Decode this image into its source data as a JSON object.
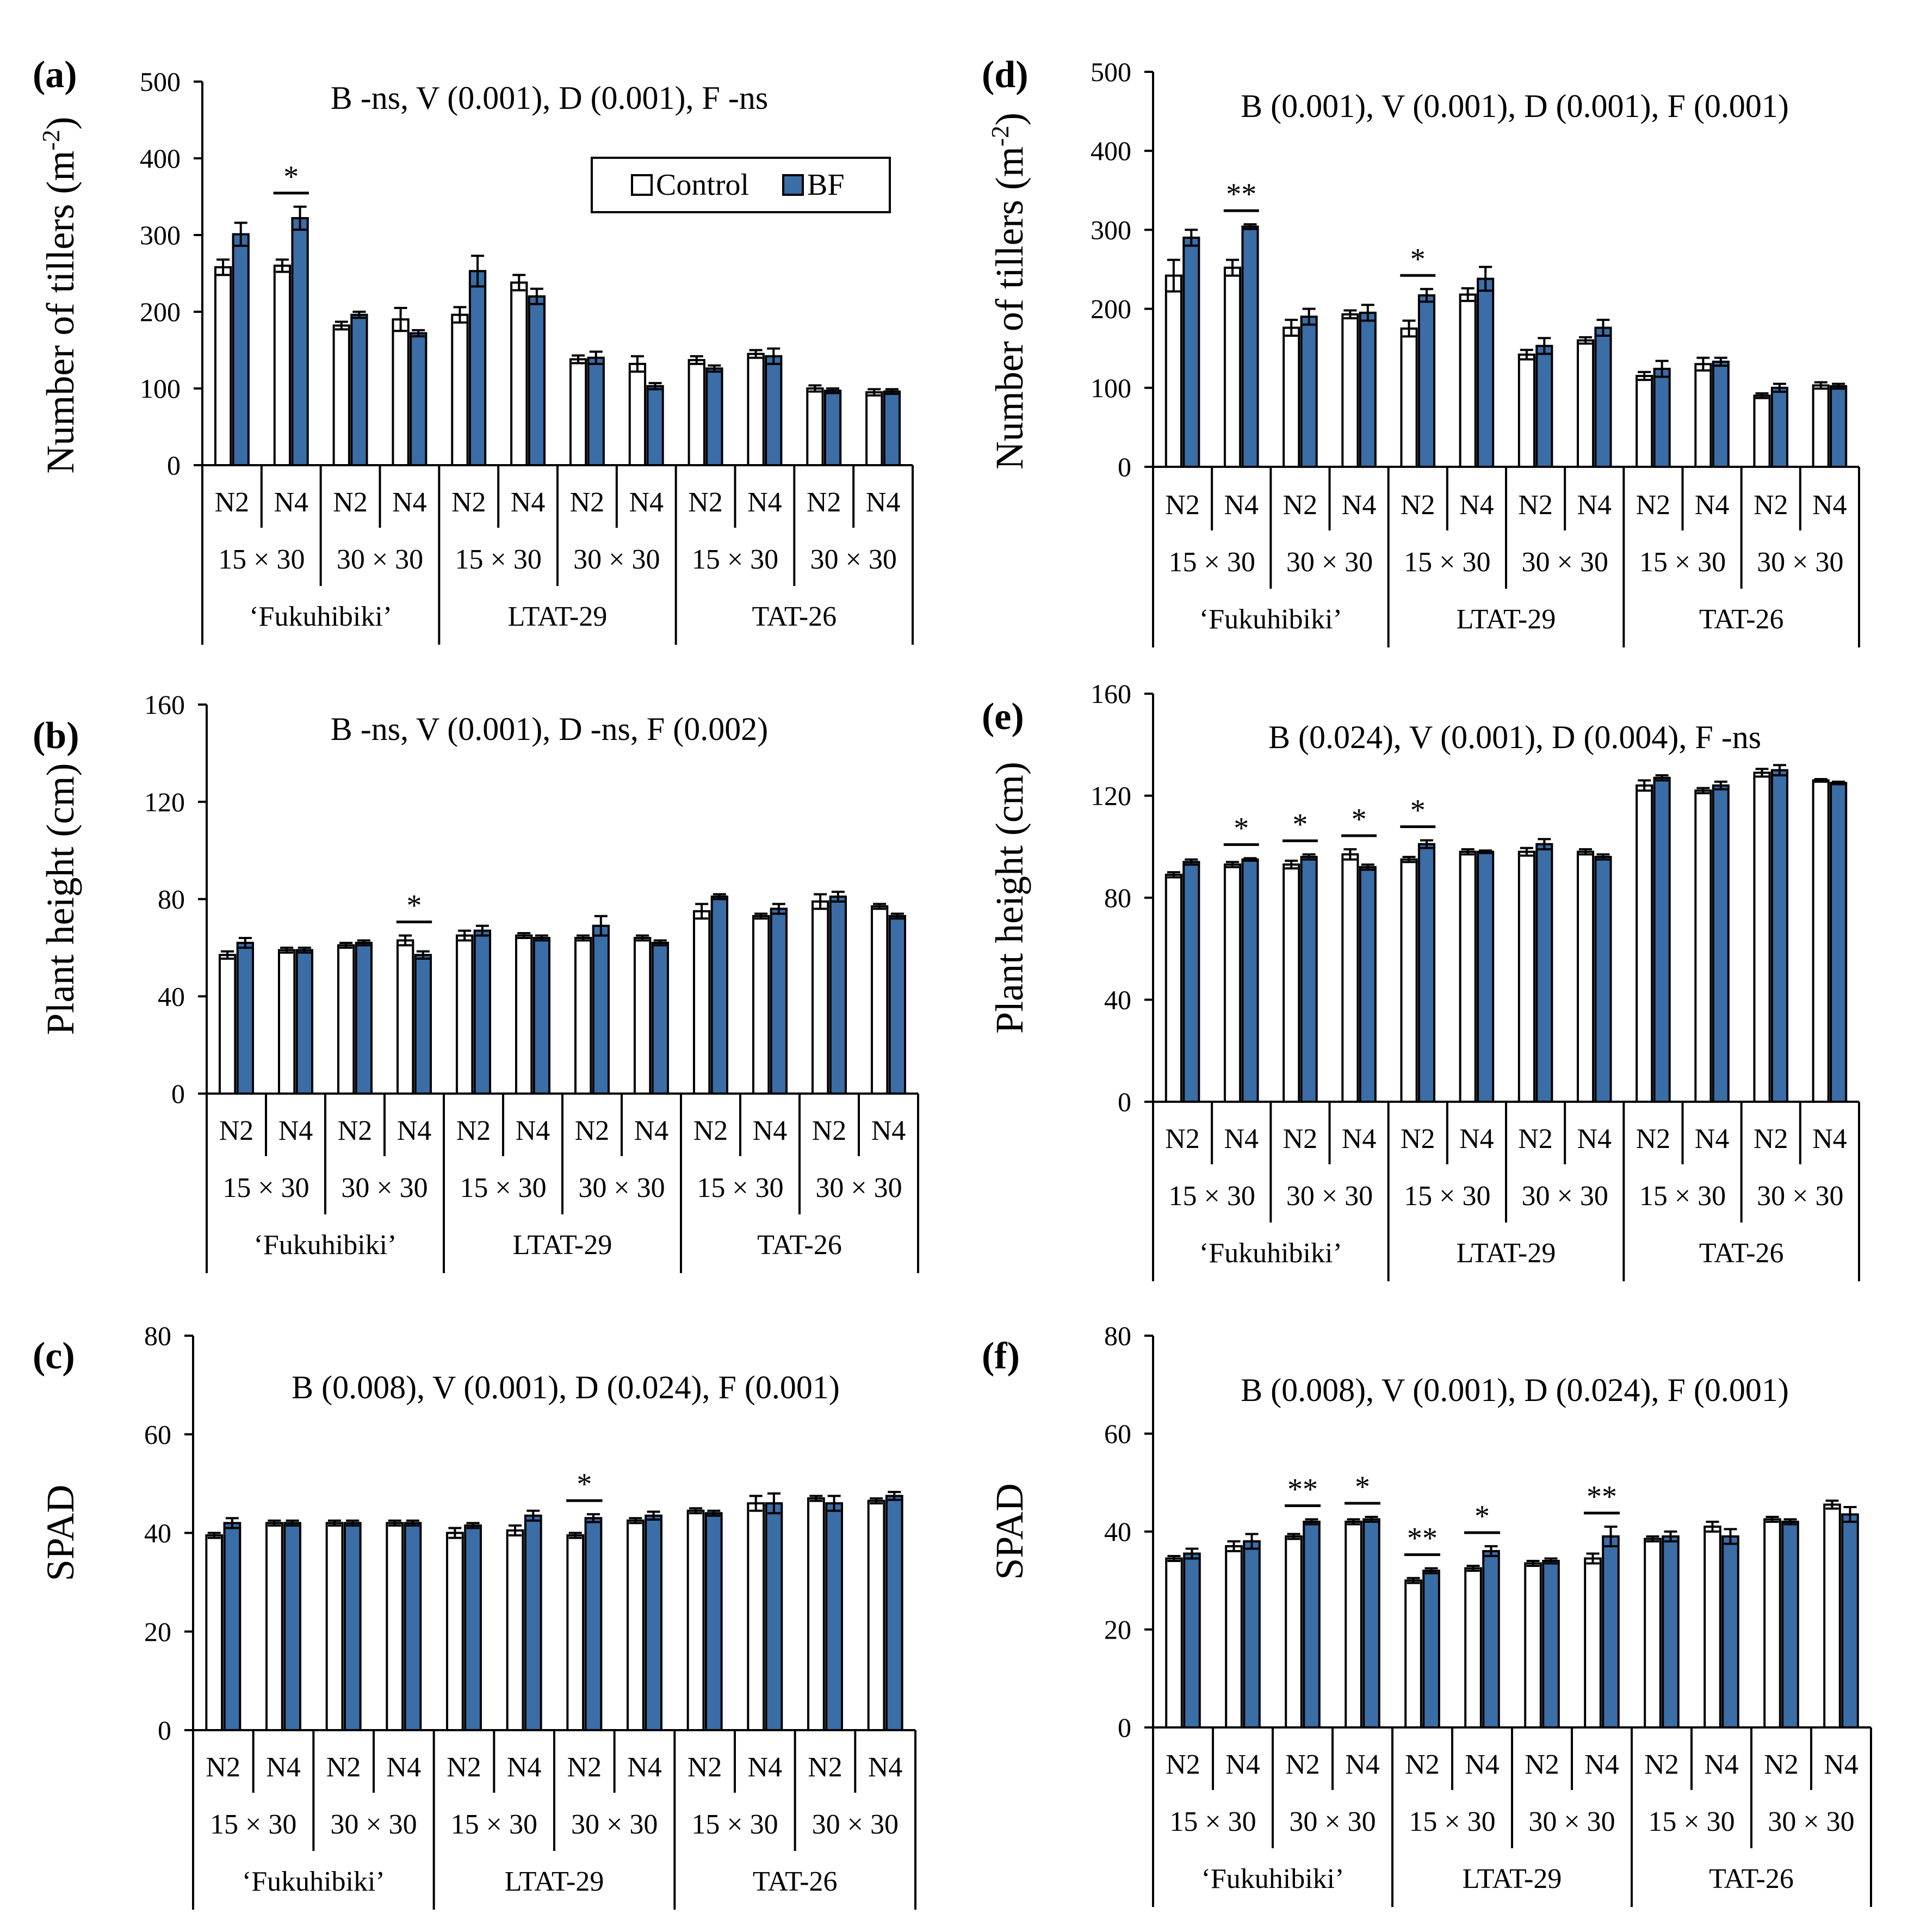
{
  "colors": {
    "control": "#ffffff",
    "bf": "#3b6da6",
    "stroke": "#000000"
  },
  "legend": {
    "control": "Control",
    "bf": "BF"
  },
  "categories": {
    "n_levels": [
      "N2",
      "N4",
      "N2",
      "N4",
      "N2",
      "N4",
      "N2",
      "N4",
      "N2",
      "N4",
      "N2",
      "N4"
    ],
    "spacing": [
      "15 × 30",
      "30 × 30",
      "15 × 30",
      "30 × 30",
      "15 × 30",
      "30 × 30"
    ],
    "varieties": [
      "‘Fukuhibiki’",
      "LTAT-29",
      "TAT-26"
    ]
  },
  "chart_data": [
    {
      "panel": "(a)",
      "type": "bar",
      "title": "B -ns, V (0.001), D (0.001), F -ns",
      "ylabel": "Number of tillers (m-2)",
      "ylabel_main": "Number of tillers (m",
      "ylabel_sup": "-2",
      "ylabel_end": ")",
      "ylim": [
        0,
        500
      ],
      "yticks": [
        "0",
        "100",
        "200",
        "300",
        "400",
        "500"
      ],
      "legend": true,
      "series": [
        {
          "name": "Control",
          "values": [
            258,
            260,
            182,
            190,
            196,
            238,
            138,
            132,
            137,
            145,
            100,
            95
          ],
          "errors": [
            10,
            8,
            5,
            15,
            10,
            10,
            5,
            10,
            5,
            5,
            4,
            4
          ]
        },
        {
          "name": "BF",
          "values": [
            301,
            322,
            196,
            172,
            253,
            220,
            140,
            103,
            126,
            142,
            97,
            96
          ],
          "errors": [
            15,
            15,
            4,
            4,
            20,
            10,
            8,
            4,
            4,
            10,
            3,
            3
          ]
        }
      ],
      "significance": [
        {
          "group": 1,
          "label": "*"
        }
      ]
    },
    {
      "panel": "(b)",
      "type": "bar",
      "title": "B -ns, V (0.001), D -ns, F (0.002)",
      "ylabel": "Plant height (cm)",
      "ylim": [
        0,
        160
      ],
      "yticks": [
        "0",
        "40",
        "80",
        "120",
        "160"
      ],
      "legend": false,
      "series": [
        {
          "name": "Control",
          "values": [
            57,
            59,
            61,
            63,
            65,
            65,
            64,
            64,
            75,
            73,
            79,
            77
          ],
          "errors": [
            1.5,
            1,
            1,
            2,
            2,
            1,
            1,
            1,
            3,
            1,
            3,
            1
          ]
        },
        {
          "name": "BF",
          "values": [
            62,
            59,
            62,
            57,
            67,
            64,
            69,
            62,
            81,
            76,
            81,
            73
          ],
          "errors": [
            2,
            1,
            1,
            1.5,
            2,
            1,
            4,
            1,
            1,
            2,
            2,
            1
          ]
        }
      ],
      "significance": [
        {
          "group": 3,
          "label": "*"
        }
      ]
    },
    {
      "panel": "(c)",
      "type": "bar",
      "title": "B (0.008), V (0.001), D (0.024), F (0.001)",
      "ylabel": "SPAD",
      "ylim": [
        0,
        80
      ],
      "yticks": [
        "0",
        "20",
        "40",
        "60",
        "80"
      ],
      "legend": false,
      "series": [
        {
          "name": "Control",
          "values": [
            39.5,
            42,
            42,
            42,
            40,
            40.5,
            39.5,
            42.5,
            44.5,
            46,
            47,
            46.5
          ],
          "errors": [
            0.5,
            0.5,
            0.5,
            0.5,
            1,
            1,
            0.5,
            0.5,
            0.5,
            1.5,
            0.5,
            0.5
          ]
        },
        {
          "name": "BF",
          "values": [
            42,
            42,
            42,
            42,
            41.5,
            43.5,
            43,
            43.5,
            44,
            46,
            46,
            47.5
          ],
          "errors": [
            1,
            0.5,
            0.5,
            0.5,
            0.5,
            1,
            0.8,
            0.8,
            0.5,
            2,
            1.5,
            0.8
          ]
        }
      ],
      "significance": [
        {
          "group": 6,
          "label": "*"
        }
      ]
    },
    {
      "panel": "(d)",
      "type": "bar",
      "title": "B (0.001), V (0.001), D (0.001), F (0.001)",
      "ylabel": "Number of tillers (m-2)",
      "ylabel_main": "Number of tillers (m",
      "ylabel_sup": "-2",
      "ylabel_end": ")",
      "ylim": [
        0,
        500
      ],
      "yticks": [
        "0",
        "100",
        "200",
        "300",
        "400",
        "500"
      ],
      "legend": false,
      "series": [
        {
          "name": "Control",
          "values": [
            242,
            252,
            176,
            193,
            175,
            218,
            142,
            160,
            115,
            130,
            90,
            103
          ],
          "errors": [
            20,
            10,
            10,
            5,
            10,
            8,
            6,
            4,
            5,
            8,
            3,
            4
          ]
        },
        {
          "name": "BF",
          "values": [
            290,
            304,
            190,
            195,
            217,
            238,
            153,
            176,
            124,
            133,
            100,
            102
          ],
          "errors": [
            10,
            3,
            10,
            10,
            8,
            15,
            10,
            10,
            10,
            5,
            5,
            3
          ]
        }
      ],
      "significance": [
        {
          "group": 1,
          "label": "**"
        },
        {
          "group": 4,
          "label": "*"
        }
      ]
    },
    {
      "panel": "(e)",
      "type": "bar",
      "title": "B (0.024), V (0.001), D (0.004), F -ns",
      "ylabel": "Plant height (cm)",
      "ylim": [
        0,
        160
      ],
      "yticks": [
        "0",
        "40",
        "80",
        "120",
        "160"
      ],
      "legend": false,
      "series": [
        {
          "name": "Control",
          "values": [
            89,
            93,
            93,
            97,
            95,
            98,
            98,
            98,
            124,
            122,
            129,
            126
          ],
          "errors": [
            1,
            1,
            1.5,
            2,
            1,
            1,
            1.5,
            1,
            2,
            1,
            1.5,
            0.5
          ]
        },
        {
          "name": "BF",
          "values": [
            94,
            95,
            96,
            92,
            101,
            98,
            101,
            96,
            127,
            124,
            130,
            125
          ],
          "errors": [
            1,
            0.5,
            1,
            1,
            1.5,
            0.5,
            2,
            1,
            1,
            1.5,
            2,
            0.5
          ]
        }
      ],
      "significance": [
        {
          "group": 1,
          "label": "*"
        },
        {
          "group": 2,
          "label": "*"
        },
        {
          "group": 3,
          "label": "*"
        },
        {
          "group": 4,
          "label": "*"
        }
      ]
    },
    {
      "panel": "(f)",
      "type": "bar",
      "title": "B (0.008), V (0.001), D (0.024), F (0.001)",
      "ylabel": "SPAD",
      "ylim": [
        0,
        80
      ],
      "yticks": [
        "0",
        "20",
        "40",
        "60",
        "80"
      ],
      "legend": false,
      "series": [
        {
          "name": "Control",
          "values": [
            34.5,
            37,
            39,
            42,
            30,
            32.5,
            33.5,
            34.5,
            38.5,
            41,
            42.5,
            45.5
          ],
          "errors": [
            0.5,
            1,
            0.5,
            0.5,
            0.5,
            0.5,
            0.5,
            1,
            0.5,
            1,
            0.5,
            0.8
          ]
        },
        {
          "name": "BF",
          "values": [
            35.5,
            38,
            42,
            42.5,
            32,
            36,
            34,
            39,
            39,
            39,
            42,
            43.5
          ],
          "errors": [
            1,
            1.5,
            0.5,
            0.5,
            0.5,
            1,
            0.5,
            2,
            1,
            1.5,
            0.5,
            1.5
          ]
        }
      ],
      "significance": [
        {
          "group": 2,
          "label": "**"
        },
        {
          "group": 3,
          "label": "*"
        },
        {
          "group": 4,
          "label": "**"
        },
        {
          "group": 5,
          "label": "*"
        },
        {
          "group": 7,
          "label": "**"
        }
      ]
    }
  ]
}
